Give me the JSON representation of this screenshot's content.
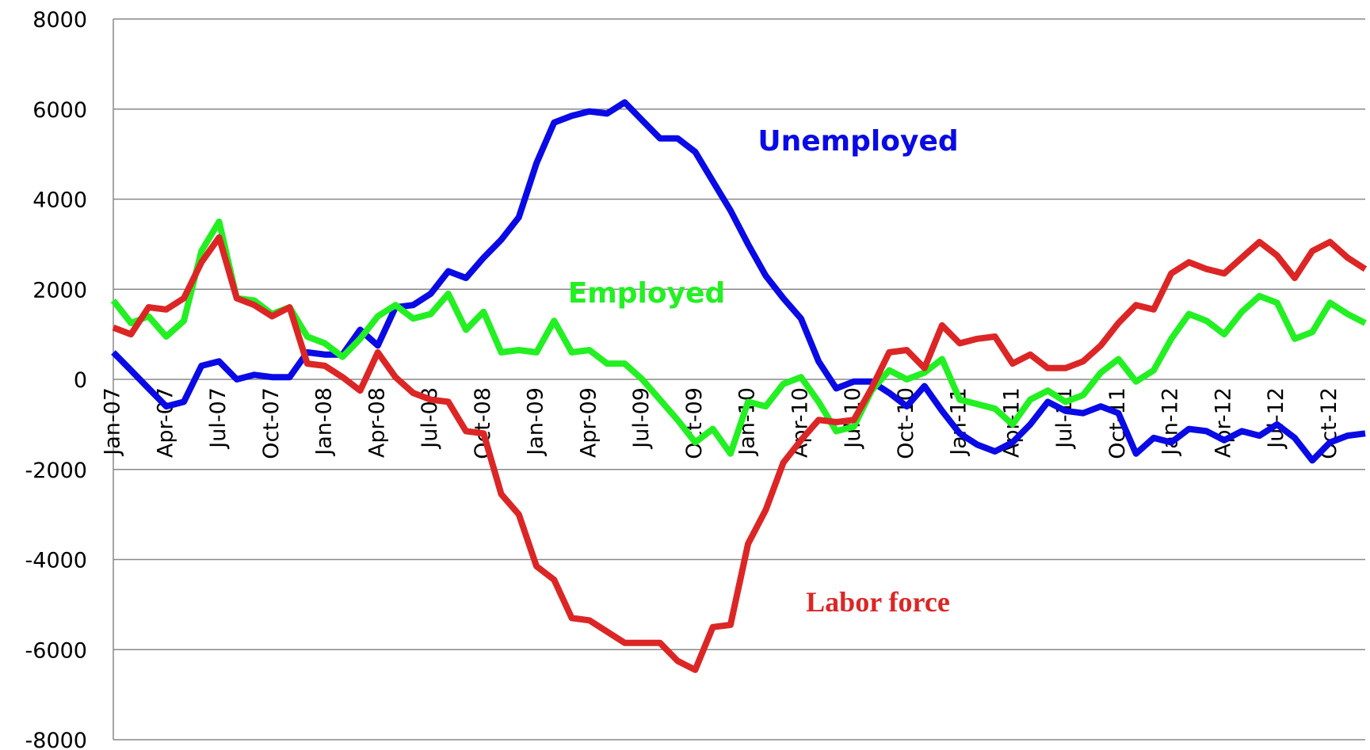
{
  "chart_data": {
    "type": "line",
    "categories": [
      "Jan-07",
      null,
      null,
      "Apr-07",
      null,
      null,
      "Jul-07",
      null,
      null,
      "Oct-07",
      null,
      null,
      "Jan-08",
      null,
      null,
      "Apr-08",
      null,
      null,
      "Jul-08",
      null,
      null,
      "Oct-08",
      null,
      null,
      "Jan-09",
      null,
      null,
      "Apr-09",
      null,
      null,
      "Jul-09",
      null,
      null,
      "Oct-09",
      null,
      null,
      "Jan-10",
      null,
      null,
      "Apr-10",
      null,
      null,
      "Jul-10",
      null,
      null,
      "Oct-10",
      null,
      null,
      "Jan-11",
      null,
      null,
      "Apr-11",
      null,
      null,
      "Jul-11",
      null,
      null,
      "Oct-11",
      null,
      null,
      "Jan-12",
      null,
      null,
      "Apr-12",
      null,
      null,
      "Jul-12",
      null,
      null,
      "Oct-12",
      null,
      null
    ],
    "series": [
      {
        "name": "Unemployed",
        "color": "#0a0ae6",
        "values": [
          600,
          200,
          -200,
          -600,
          -500,
          300,
          400,
          0,
          100,
          50,
          50,
          600,
          550,
          550,
          1100,
          750,
          1600,
          1650,
          1900,
          2400,
          2250,
          2700,
          3100,
          3600,
          4800,
          5700,
          5850,
          5950,
          5900,
          6150,
          5750,
          5350,
          5350,
          5050,
          4400,
          3750,
          3000,
          2300,
          1800,
          1350,
          400,
          -200,
          -50,
          -50,
          -300,
          -600,
          -150,
          -700,
          -1200,
          -1450,
          -1600,
          -1400,
          -1000,
          -500,
          -700,
          -750,
          -600,
          -750,
          -1650,
          -1300,
          -1400,
          -1100,
          -1150,
          -1350,
          -1150,
          -1250,
          -1000,
          -1300,
          -1800,
          -1400,
          -1250,
          -1200
        ]
      },
      {
        "name": "Employed",
        "color": "#22f022",
        "values": [
          1750,
          1250,
          1400,
          950,
          1300,
          2850,
          3500,
          1800,
          1750,
          1450,
          1600,
          950,
          800,
          500,
          900,
          1400,
          1650,
          1350,
          1450,
          1900,
          1100,
          1500,
          600,
          650,
          600,
          1300,
          600,
          650,
          350,
          350,
          0,
          -450,
          -900,
          -1400,
          -1100,
          -1650,
          -500,
          -600,
          -100,
          50,
          -500,
          -1150,
          -1050,
          -250,
          200,
          0,
          150,
          450,
          -450,
          -550,
          -650,
          -1000,
          -450,
          -250,
          -500,
          -350,
          150,
          450,
          -50,
          200,
          900,
          1450,
          1300,
          1000,
          1500,
          1850,
          1700,
          900,
          1050,
          1700,
          1450,
          1250
        ]
      },
      {
        "name": "Labor force",
        "color": "#dc2626",
        "values": [
          1150,
          1000,
          1600,
          1550,
          1800,
          2600,
          3150,
          1800,
          1650,
          1400,
          1600,
          350,
          300,
          50,
          -250,
          600,
          50,
          -300,
          -450,
          -500,
          -1150,
          -1200,
          -2550,
          -3000,
          -4150,
          -4450,
          -5300,
          -5350,
          -5600,
          -5850,
          -5850,
          -5850,
          -6250,
          -6450,
          -5500,
          -5450,
          -3650,
          -2900,
          -1850,
          -1350,
          -900,
          -950,
          -900,
          -200,
          600,
          650,
          250,
          1200,
          800,
          900,
          950,
          350,
          550,
          250,
          250,
          400,
          750,
          1250,
          1650,
          1550,
          2350,
          2600,
          2450,
          2350,
          2700,
          3050,
          2750,
          2250,
          2850,
          3050,
          2700,
          2450
        ]
      }
    ],
    "annotations": [
      {
        "text": "Unemployed",
        "color": "#0a0ae6"
      },
      {
        "text": "Employed",
        "color": "#22f022"
      },
      {
        "text": "Labor force",
        "color": "#dc2626"
      }
    ],
    "ylim": [
      -8000,
      8000
    ],
    "yticks": [
      -8000,
      -6000,
      -4000,
      -2000,
      0,
      2000,
      4000,
      6000,
      8000
    ],
    "grid": true
  }
}
